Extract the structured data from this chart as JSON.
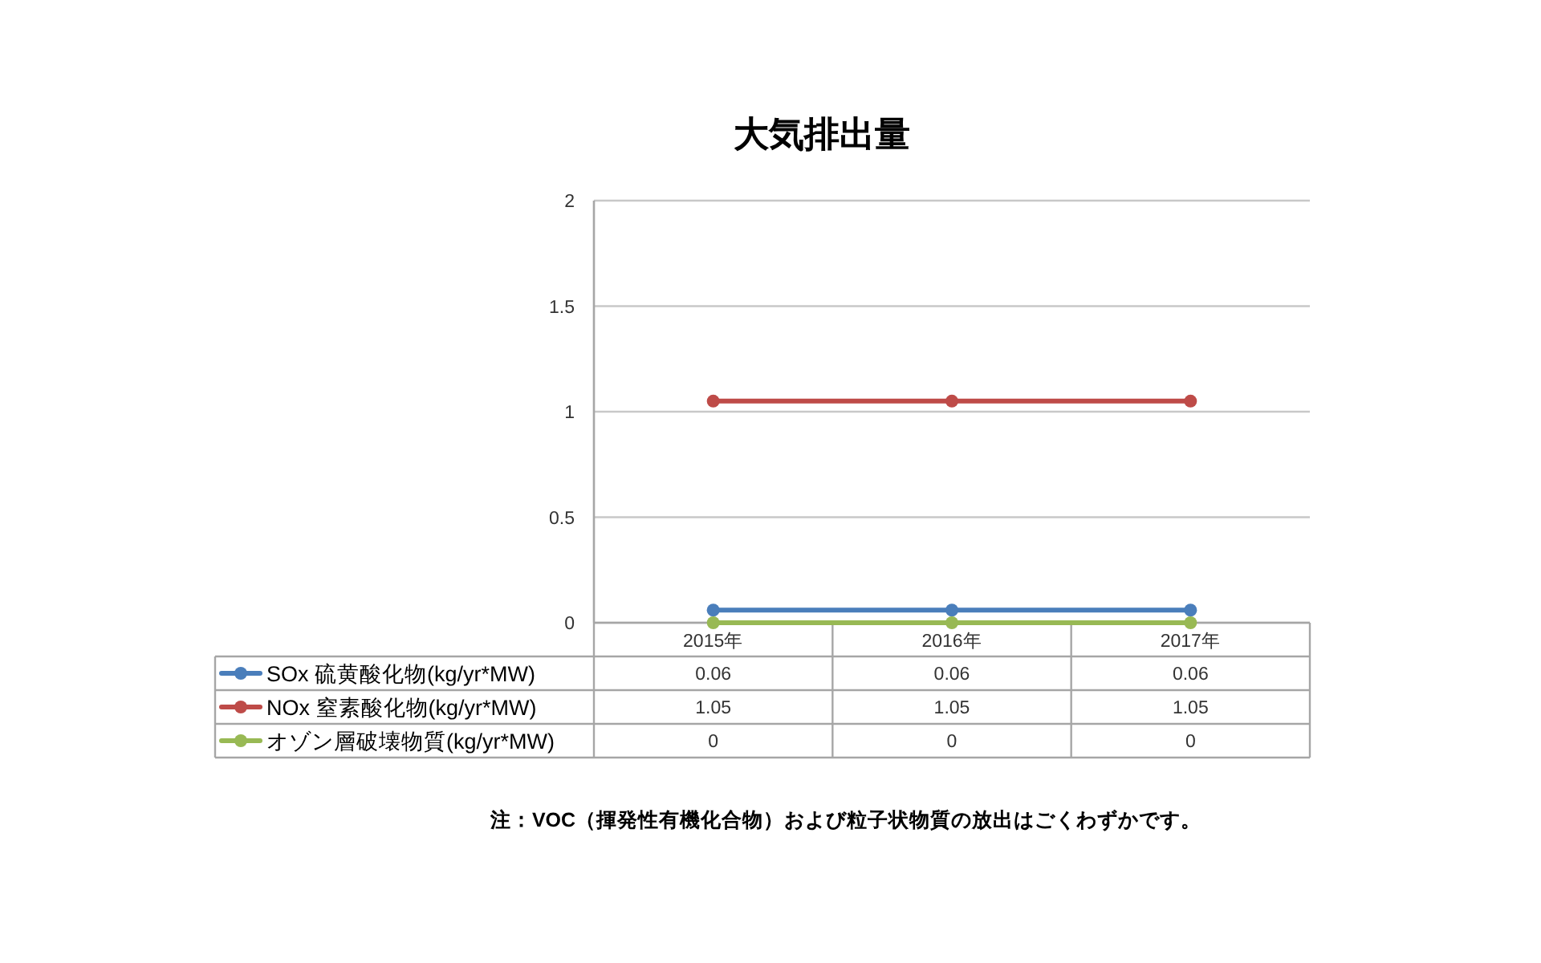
{
  "chart_data": {
    "type": "line",
    "title": "大気排出量",
    "categories": [
      "2015年",
      "2016年",
      "2017年"
    ],
    "series": [
      {
        "name": "SOx 硫黄酸化物(kg/yr*MW)",
        "color": "#4a7ebb",
        "values": [
          0.06,
          0.06,
          0.06
        ]
      },
      {
        "name": "NOx 窒素酸化物(kg/yr*MW)",
        "color": "#be4b48",
        "values": [
          1.05,
          1.05,
          1.05
        ]
      },
      {
        "name": "オゾン層破壊物質(kg/yr*MW)",
        "color": "#98b954",
        "values": [
          0,
          0,
          0
        ]
      }
    ],
    "ylim": [
      0,
      2
    ],
    "yticks": [
      0,
      0.5,
      1,
      1.5,
      2
    ],
    "grid": "y",
    "marker": "circle",
    "legend": "bottom",
    "data_labels": true,
    "annotations": [
      "注：VOC（揮発性有機化合物）および粒子状物質の放出はごくわずかです。"
    ]
  }
}
